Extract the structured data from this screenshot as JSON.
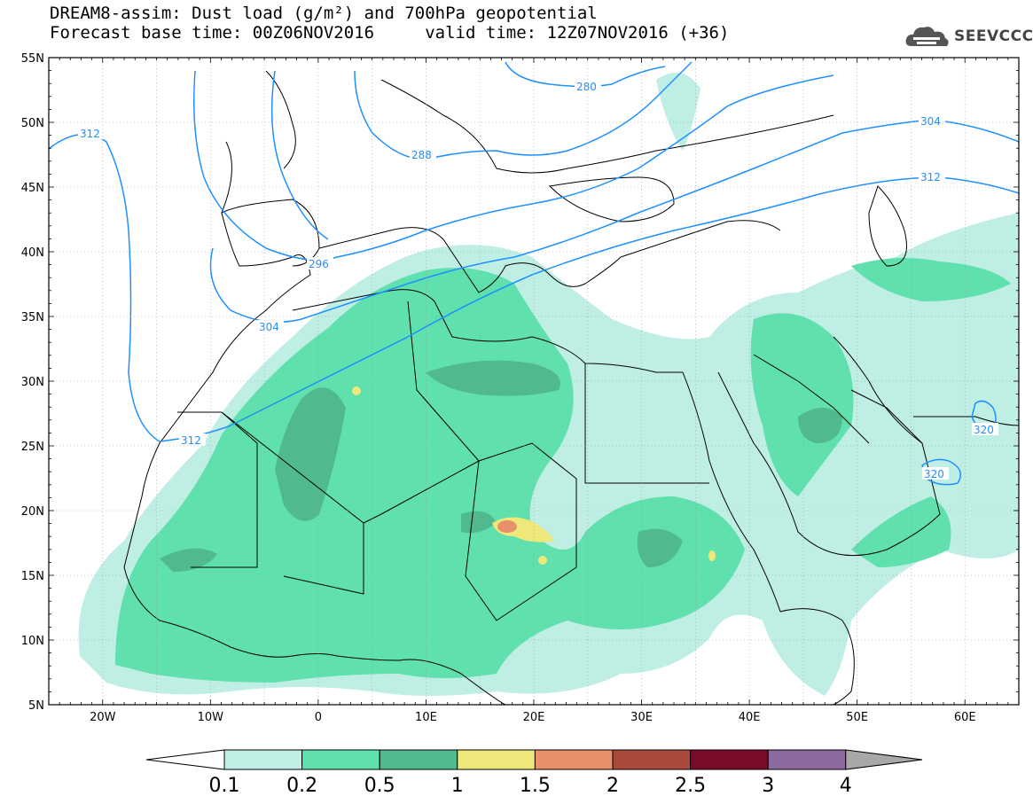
{
  "header": {
    "title_line1": "DREAM8-assim: Dust load (g/m²) and 700hPa geopotential",
    "title_line2": "Forecast base time: 00Z06NOV2016     valid time: 12Z07NOV2016 (+36)"
  },
  "logo": {
    "text": "SEEVCCC",
    "icon": "cloud-icon"
  },
  "axes": {
    "lon_labels": [
      "20W",
      "10W",
      "0",
      "10E",
      "20E",
      "30E",
      "40E",
      "50E",
      "60E"
    ],
    "lat_labels": [
      "55N",
      "50N",
      "45N",
      "40N",
      "35N",
      "30N",
      "25N",
      "20N",
      "15N",
      "10N",
      "5N"
    ],
    "lon_range": [
      -25,
      65
    ],
    "lat_range": [
      5,
      55
    ]
  },
  "contours": {
    "labels": [
      "312",
      "280",
      "288",
      "296",
      "304",
      "304",
      "312",
      "312",
      "320",
      "320"
    ],
    "color": "#1e90ff"
  },
  "colorbar": {
    "ticks": [
      "0.1",
      "0.2",
      "0.5",
      "1",
      "1.5",
      "2",
      "2.5",
      "3",
      "4"
    ],
    "colors": [
      "#bfeee4",
      "#5fe0ac",
      "#50b98d",
      "#eee87a",
      "#e8906a",
      "#a94a3c",
      "#7a0c2a",
      "#8c6aa0"
    ],
    "under_color": "#ffffff",
    "over_color": "#a8a8a8"
  }
}
